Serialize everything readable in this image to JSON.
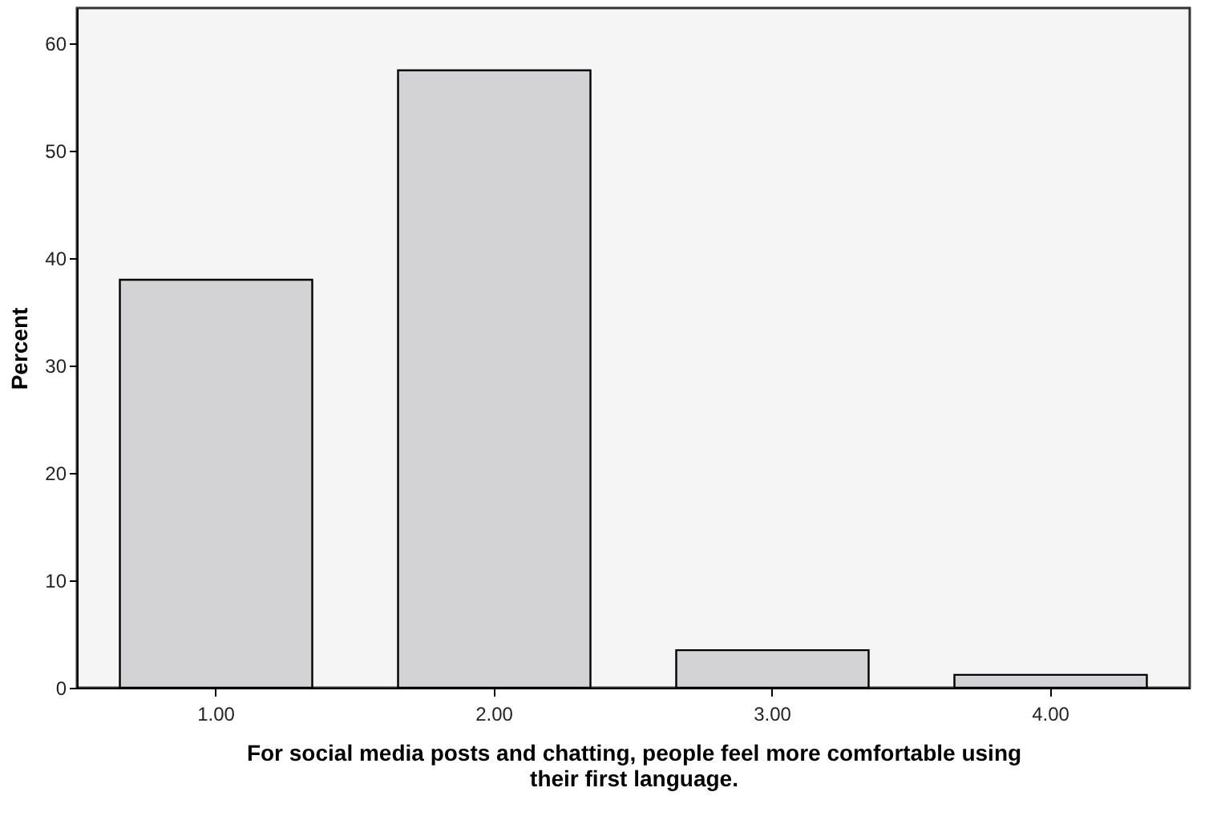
{
  "chart_data": {
    "type": "bar",
    "xlabel": "For social media posts and chatting, people feel more comfortable using their first language.",
    "ylabel": "Percent",
    "categories": [
      "1.00",
      "2.00",
      "3.00",
      "4.00"
    ],
    "values": [
      38.0,
      57.5,
      3.5,
      1.2
    ],
    "color": "#d3d3d5",
    "ylim": [
      0,
      63.3
    ],
    "yticks": [
      0,
      10,
      20,
      30,
      40,
      50,
      60
    ],
    "grid": false
  }
}
